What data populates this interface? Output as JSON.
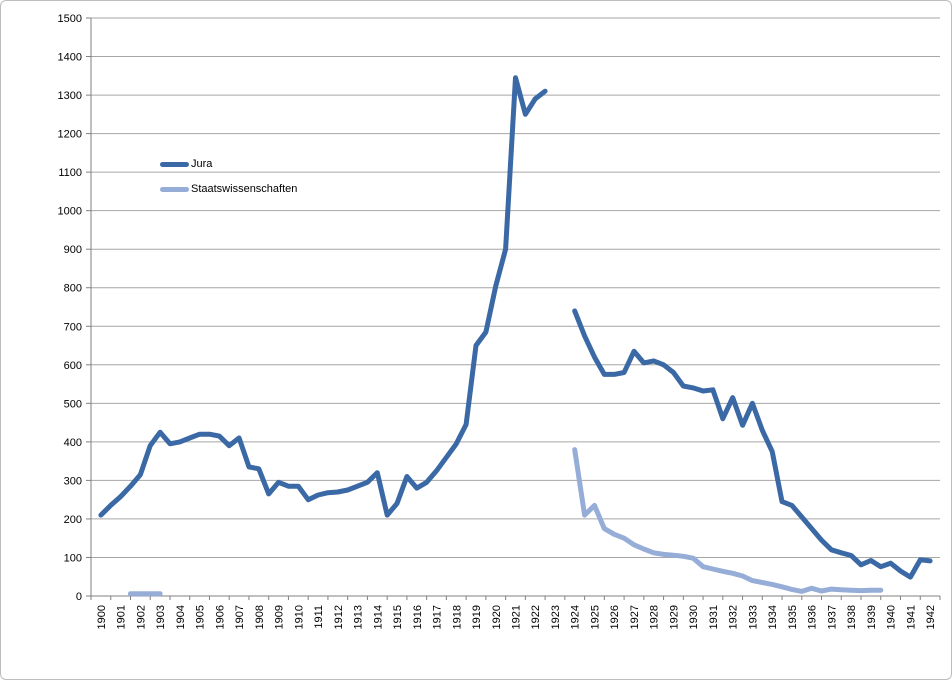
{
  "chart_data": {
    "type": "line",
    "title": "",
    "xlabel": "",
    "ylabel": "",
    "grid": true,
    "legend_position": "inside-upper-left",
    "x_axis": {
      "start": 1900,
      "end": 1942,
      "labels": [
        "1900",
        "1901",
        "1902",
        "1903",
        "1904",
        "1905",
        "1906",
        "1907",
        "1908",
        "1909",
        "1910",
        "1911",
        "1912",
        "1913",
        "1914",
        "1915",
        "1916",
        "1917",
        "1918",
        "1919",
        "1920",
        "1921",
        "1922",
        "1923",
        "1924",
        "1925",
        "1926",
        "1927",
        "1928",
        "1929",
        "1930",
        "1931",
        "1932",
        "1933",
        "1934",
        "1935",
        "1936",
        "1937",
        "1938",
        "1939",
        "1940",
        "1941",
        "1942"
      ]
    },
    "y_axis": {
      "min": 0,
      "max": 1500,
      "step": 100,
      "labels": [
        "0",
        "100",
        "200",
        "300",
        "400",
        "500",
        "600",
        "700",
        "800",
        "900",
        "1000",
        "1100",
        "1200",
        "1300",
        "1400",
        "1500"
      ]
    },
    "colors": {
      "axis": "#808080",
      "gridline": "#a6a6a6",
      "text": "#000000"
    },
    "series": [
      {
        "name": "Jura",
        "color": "#3a69a5",
        "line_width": 5,
        "segments": [
          [
            [
              1900,
              210
            ],
            [
              1900.5,
              235
            ],
            [
              1901,
              258
            ],
            [
              1901.5,
              285
            ],
            [
              1902,
              315
            ],
            [
              1902.5,
              390
            ],
            [
              1903,
              425
            ],
            [
              1903.5,
              395
            ],
            [
              1904,
              400
            ],
            [
              1904.5,
              410
            ],
            [
              1905,
              420
            ],
            [
              1905.5,
              420
            ],
            [
              1906,
              415
            ],
            [
              1906.5,
              390
            ],
            [
              1907,
              410
            ],
            [
              1907.5,
              335
            ],
            [
              1908,
              330
            ],
            [
              1908.5,
              265
            ],
            [
              1909,
              295
            ],
            [
              1909.5,
              285
            ],
            [
              1910,
              285
            ],
            [
              1910.5,
              250
            ],
            [
              1911,
              262
            ],
            [
              1911.5,
              268
            ],
            [
              1912,
              270
            ],
            [
              1912.5,
              275
            ],
            [
              1913,
              285
            ],
            [
              1913.5,
              295
            ],
            [
              1914,
              320
            ],
            [
              1914.5,
              210
            ],
            [
              1915,
              240
            ],
            [
              1915.5,
              310
            ],
            [
              1916,
              280
            ],
            [
              1916.5,
              295
            ],
            [
              1917,
              325
            ],
            [
              1917.5,
              360
            ],
            [
              1918,
              395
            ],
            [
              1918.5,
              445
            ],
            [
              1919,
              650
            ],
            [
              1919.5,
              685
            ],
            [
              1920,
              805
            ],
            [
              1920.5,
              900
            ],
            [
              1921,
              1345
            ],
            [
              1921.5,
              1250
            ],
            [
              1922,
              1290
            ],
            [
              1922.5,
              1310
            ]
          ],
          [
            [
              1924,
              740
            ],
            [
              1924.5,
              675
            ],
            [
              1925,
              620
            ],
            [
              1925.5,
              575
            ],
            [
              1926,
              575
            ],
            [
              1926.5,
              580
            ],
            [
              1927,
              635
            ],
            [
              1927.5,
              605
            ],
            [
              1928,
              610
            ],
            [
              1928.5,
              600
            ],
            [
              1929,
              580
            ],
            [
              1929.5,
              545
            ],
            [
              1930,
              540
            ],
            [
              1930.5,
              532
            ],
            [
              1931,
              535
            ],
            [
              1931.5,
              460
            ],
            [
              1932,
              515
            ],
            [
              1932.5,
              443
            ],
            [
              1933,
              500
            ],
            [
              1933.5,
              430
            ],
            [
              1934,
              375
            ],
            [
              1934.5,
              245
            ],
            [
              1935,
              235
            ],
            [
              1935.5,
              205
            ],
            [
              1936,
              175
            ],
            [
              1936.5,
              145
            ],
            [
              1937,
              120
            ],
            [
              1937.5,
              112
            ],
            [
              1938,
              105
            ],
            [
              1938.5,
              81
            ],
            [
              1939,
              92
            ],
            [
              1939.5,
              76
            ],
            [
              1940,
              85
            ],
            [
              1940.5,
              65
            ],
            [
              1941,
              49
            ],
            [
              1941.5,
              94
            ],
            [
              1942,
              91
            ]
          ]
        ]
      },
      {
        "name": "Staatswissenschaften",
        "color": "#96add7",
        "line_width": 5,
        "segments": [
          [
            [
              1901.5,
              6
            ],
            [
              1902,
              6
            ],
            [
              1902.5,
              6
            ],
            [
              1903,
              6
            ]
          ],
          [
            [
              1924,
              380
            ],
            [
              1924.5,
              210
            ],
            [
              1925,
              235
            ],
            [
              1925.5,
              175
            ],
            [
              1926,
              160
            ],
            [
              1926.5,
              150
            ],
            [
              1927,
              133
            ],
            [
              1927.5,
              122
            ],
            [
              1928,
              112
            ],
            [
              1928.5,
              108
            ],
            [
              1929,
              106
            ],
            [
              1929.5,
              103
            ],
            [
              1930,
              98
            ],
            [
              1930.5,
              76
            ],
            [
              1931,
              70
            ],
            [
              1931.5,
              64
            ],
            [
              1932,
              59
            ],
            [
              1932.5,
              52
            ],
            [
              1933,
              40
            ],
            [
              1933.5,
              35
            ],
            [
              1934,
              30
            ],
            [
              1934.5,
              24
            ],
            [
              1935,
              17
            ],
            [
              1935.5,
              12
            ],
            [
              1936,
              20
            ],
            [
              1936.5,
              13
            ],
            [
              1937,
              18
            ],
            [
              1937.5,
              16
            ],
            [
              1938,
              15
            ],
            [
              1938.5,
              14
            ],
            [
              1939,
              15
            ],
            [
              1939.5,
              15
            ]
          ]
        ]
      }
    ]
  },
  "legend": {
    "items": [
      {
        "label": "Jura"
      },
      {
        "label": "Staatswissenschaften"
      }
    ]
  }
}
